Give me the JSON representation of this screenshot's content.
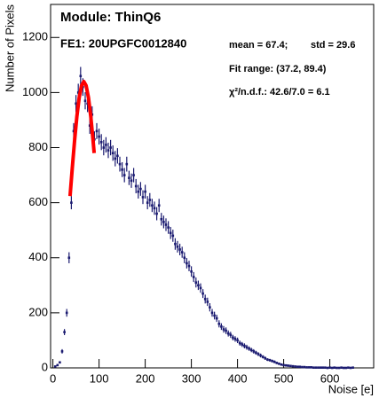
{
  "chart_data": {
    "type": "errorbar",
    "title": "Module: ThinQ6",
    "annotations": [
      "FE1: 20UPGFC0012840",
      "mean = 67.4;",
      "std = 29.6",
      "Fit range: (37.2, 89.4)",
      "χ²/n.d.f.: 42.6/7.0 = 6.1"
    ],
    "x_label": "Noise [e]",
    "y_label": "Number of Pixels",
    "xlim": [
      -5,
      695
    ],
    "xticks": [
      0,
      100,
      200,
      300,
      400,
      500,
      600
    ],
    "ylim": [
      0,
      1320
    ],
    "yticks": [
      0,
      200,
      400,
      600,
      800,
      1000,
      1200
    ],
    "color": "#1a1a70",
    "x": [
      5,
      10,
      15,
      20,
      25,
      30,
      35,
      40,
      45,
      50,
      55,
      60,
      65,
      70,
      75,
      80,
      85,
      90,
      95,
      100,
      105,
      110,
      115,
      120,
      125,
      130,
      135,
      140,
      145,
      150,
      155,
      160,
      165,
      170,
      175,
      180,
      185,
      190,
      195,
      200,
      205,
      210,
      215,
      220,
      225,
      230,
      235,
      240,
      245,
      250,
      255,
      260,
      265,
      270,
      275,
      280,
      285,
      290,
      295,
      300,
      305,
      310,
      315,
      320,
      325,
      330,
      335,
      340,
      345,
      350,
      355,
      360,
      365,
      370,
      375,
      380,
      385,
      390,
      395,
      400,
      405,
      410,
      415,
      420,
      425,
      430,
      435,
      440,
      445,
      450,
      455,
      460,
      465,
      470,
      475,
      480,
      485,
      490,
      495,
      500,
      505,
      510,
      515,
      520,
      525,
      530,
      535,
      540,
      545,
      550,
      555,
      560,
      565,
      570,
      575,
      580,
      585,
      590,
      595,
      600,
      605,
      610,
      615,
      620,
      625,
      630,
      635,
      640,
      645,
      650
    ],
    "values": [
      5,
      10,
      20,
      60,
      130,
      200,
      400,
      600,
      860,
      960,
      1000,
      1060,
      1020,
      970,
      960,
      880,
      920,
      830,
      860,
      840,
      820,
      800,
      810,
      790,
      800,
      780,
      760,
      770,
      740,
      720,
      700,
      740,
      690,
      680,
      700,
      660,
      640,
      650,
      620,
      640,
      600,
      610,
      590,
      580,
      560,
      590,
      540,
      530,
      520,
      510,
      490,
      480,
      450,
      440,
      430,
      420,
      400,
      380,
      370,
      350,
      330,
      310,
      300,
      290,
      270,
      250,
      240,
      220,
      200,
      190,
      180,
      160,
      150,
      140,
      135,
      125,
      120,
      110,
      105,
      100,
      90,
      85,
      80,
      75,
      70,
      65,
      60,
      55,
      50,
      45,
      40,
      35,
      30,
      28,
      25,
      22,
      18,
      15,
      12,
      10,
      9,
      8,
      7,
      6,
      5,
      4,
      4,
      3,
      3,
      2,
      2,
      2,
      1,
      1,
      1,
      1,
      1,
      1,
      0,
      1,
      0,
      1,
      0,
      0,
      1,
      0,
      0,
      1,
      0,
      1
    ],
    "errors": [
      2,
      3,
      4,
      8,
      11,
      14,
      20,
      24,
      29,
      31,
      32,
      33,
      32,
      31,
      31,
      30,
      30,
      29,
      29,
      29,
      29,
      28,
      28,
      28,
      28,
      28,
      28,
      28,
      27,
      27,
      26,
      27,
      26,
      26,
      26,
      26,
      25,
      25,
      25,
      25,
      24,
      25,
      24,
      24,
      24,
      24,
      23,
      23,
      23,
      23,
      22,
      22,
      21,
      21,
      21,
      20,
      20,
      19,
      19,
      19,
      18,
      18,
      17,
      17,
      16,
      16,
      15,
      15,
      14,
      14,
      13,
      13,
      12,
      12,
      12,
      11,
      11,
      10,
      10,
      10,
      9,
      9,
      9,
      9,
      8,
      8,
      8,
      7,
      7,
      7,
      6,
      6,
      5,
      5,
      5,
      5,
      4,
      4,
      3,
      3,
      3,
      3,
      3,
      2,
      2,
      2,
      2,
      2,
      2,
      1,
      1,
      1,
      1,
      1,
      1,
      1,
      1,
      1,
      0,
      1,
      0,
      1,
      0,
      0,
      1,
      0,
      0,
      1,
      0,
      1
    ],
    "fit": {
      "color": "#ff0000",
      "x": [
        37.2,
        42,
        47,
        52,
        57,
        62,
        67,
        72,
        77,
        82,
        87,
        89.4
      ],
      "values": [
        624,
        726,
        826,
        914,
        982,
        1025,
        1040,
        1025,
        982,
        914,
        826,
        780
      ]
    }
  }
}
